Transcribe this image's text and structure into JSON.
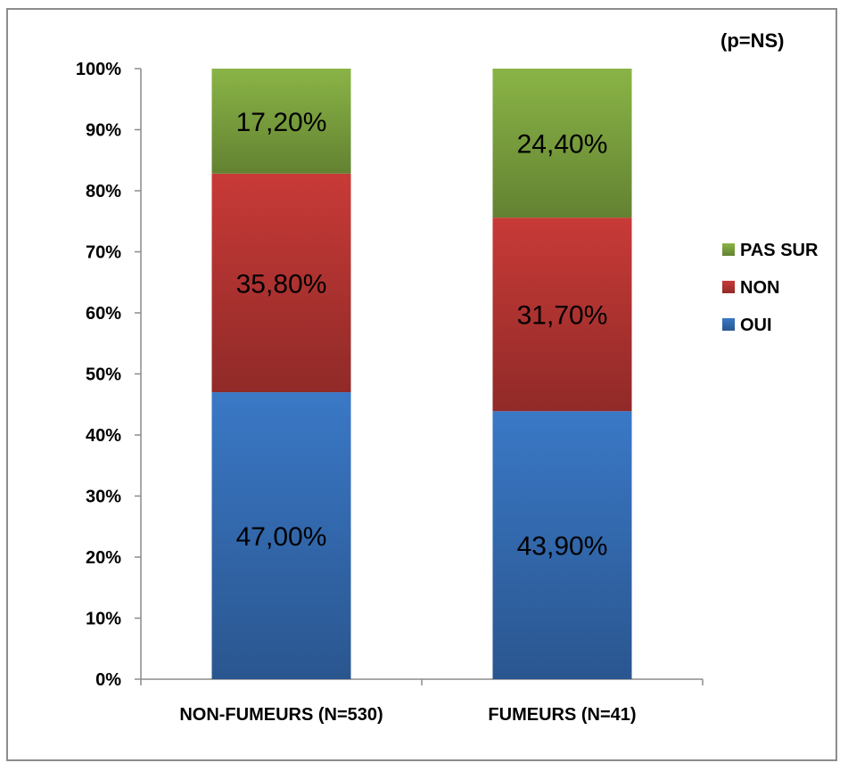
{
  "chart_data": {
    "type": "bar",
    "stacked": true,
    "percent": true,
    "title": "",
    "xlabel": "",
    "ylabel": "",
    "ylim": [
      0,
      100
    ],
    "y_ticks": [
      "0%",
      "10%",
      "20%",
      "30%",
      "40%",
      "50%",
      "60%",
      "70%",
      "80%",
      "90%",
      "100%"
    ],
    "categories": [
      "NON-FUMEURS (N=530)",
      "FUMEURS (N=41)"
    ],
    "series": [
      {
        "name": "OUI",
        "values": [
          47.0,
          43.9
        ],
        "labels": [
          "47,00%",
          "43,90%"
        ],
        "color": "#3a78c6"
      },
      {
        "name": "NON",
        "values": [
          35.8,
          31.7
        ],
        "labels": [
          "35,80%",
          "31,70%"
        ],
        "color": "#c83a37"
      },
      {
        "name": "PAS SUR",
        "values": [
          17.2,
          24.4
        ],
        "labels": [
          "17,20%",
          "24,40%"
        ],
        "color": "#8ab446"
      }
    ],
    "legend": {
      "position": "right",
      "order": [
        "PAS SUR",
        "NON",
        "OUI"
      ]
    },
    "annotation": "(p=NS)",
    "grid": false
  }
}
